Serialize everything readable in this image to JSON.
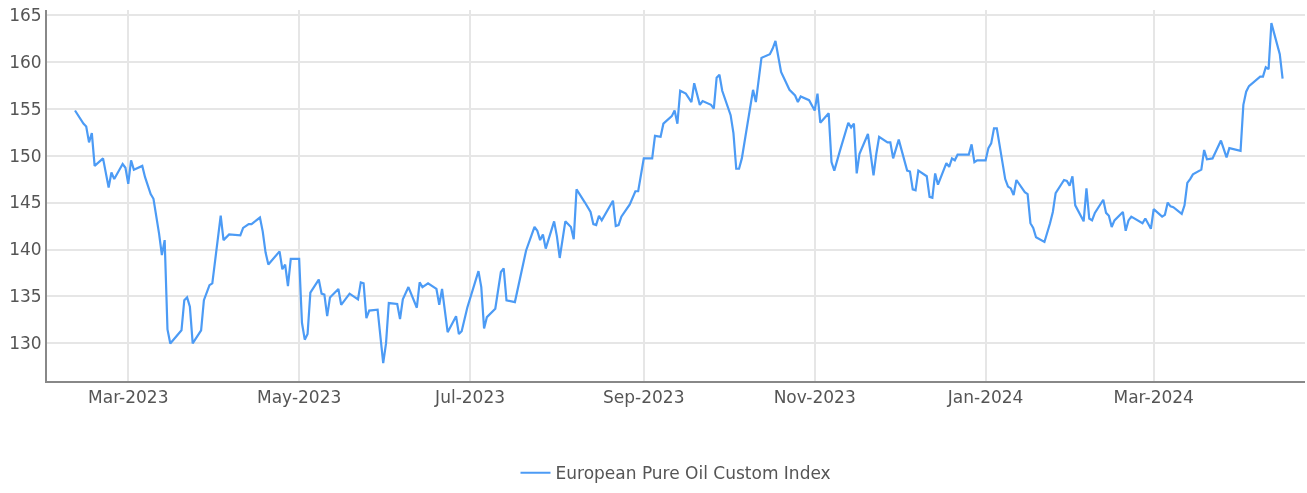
{
  "chart_data": {
    "type": "line",
    "xlim": [
      "2023-01-31",
      "2024-04-24"
    ],
    "ylim": [
      126,
      165.5
    ],
    "xticks": [
      {
        "value": "2023-03-01",
        "label": "Mar-2023"
      },
      {
        "value": "2023-05-01",
        "label": "May-2023"
      },
      {
        "value": "2023-07-01",
        "label": "Jul-2023"
      },
      {
        "value": "2023-09-01",
        "label": "Sep-2023"
      },
      {
        "value": "2023-11-01",
        "label": "Nov-2023"
      },
      {
        "value": "2024-01-01",
        "label": "Jan-2024"
      },
      {
        "value": "2024-03-01",
        "label": "Mar-2024"
      }
    ],
    "yticks": [
      130,
      135,
      140,
      145,
      150,
      155,
      160,
      165
    ],
    "grid": true,
    "legend": "bottom",
    "marker": "none",
    "line_style": "solid",
    "series": [
      {
        "name": "European Pure Oil Custom Index",
        "color": "#4c9bf5",
        "x": [
          "2023-02-10",
          "2023-02-13",
          "2023-02-14",
          "2023-02-15",
          "2023-02-16",
          "2023-02-17",
          "2023-02-20",
          "2023-02-22",
          "2023-02-23",
          "2023-02-24",
          "2023-02-27",
          "2023-02-28",
          "2023-03-01",
          "2023-03-02",
          "2023-03-03",
          "2023-03-06",
          "2023-03-07",
          "2023-03-09",
          "2023-03-10",
          "2023-03-12",
          "2023-03-13",
          "2023-03-14",
          "2023-03-15",
          "2023-03-16",
          "2023-03-20",
          "2023-03-21",
          "2023-03-22",
          "2023-03-23",
          "2023-03-24",
          "2023-03-27",
          "2023-03-28",
          "2023-03-30",
          "2023-03-31",
          "2023-04-03",
          "2023-04-04",
          "2023-04-06",
          "2023-04-10",
          "2023-04-11",
          "2023-04-13",
          "2023-04-14",
          "2023-04-17",
          "2023-04-18",
          "2023-04-19",
          "2023-04-20",
          "2023-04-24",
          "2023-04-25",
          "2023-04-26",
          "2023-04-27",
          "2023-04-28",
          "2023-05-01",
          "2023-05-02",
          "2023-05-03",
          "2023-05-04",
          "2023-05-05",
          "2023-05-08",
          "2023-05-09",
          "2023-05-10",
          "2023-05-11",
          "2023-05-12",
          "2023-05-15",
          "2023-05-16",
          "2023-05-19",
          "2023-05-22",
          "2023-05-23",
          "2023-05-24",
          "2023-05-25",
          "2023-05-26",
          "2023-05-29",
          "2023-05-31",
          "2023-06-01",
          "2023-06-02",
          "2023-06-05",
          "2023-06-06",
          "2023-06-07",
          "2023-06-09",
          "2023-06-12",
          "2023-06-13",
          "2023-06-14",
          "2023-06-16",
          "2023-06-19",
          "2023-06-20",
          "2023-06-21",
          "2023-06-23",
          "2023-06-26",
          "2023-06-27",
          "2023-06-28",
          "2023-06-30",
          "2023-07-04",
          "2023-07-05",
          "2023-07-06",
          "2023-07-07",
          "2023-07-10",
          "2023-07-12",
          "2023-07-13",
          "2023-07-14",
          "2023-07-17",
          "2023-07-21",
          "2023-07-24",
          "2023-07-25",
          "2023-07-26",
          "2023-07-27",
          "2023-07-28",
          "2023-07-31",
          "2023-08-01",
          "2023-08-02",
          "2023-08-04",
          "2023-08-06",
          "2023-08-07",
          "2023-08-08",
          "2023-08-11",
          "2023-08-13",
          "2023-08-14",
          "2023-08-15",
          "2023-08-16",
          "2023-08-17",
          "2023-08-21",
          "2023-08-22",
          "2023-08-23",
          "2023-08-24",
          "2023-08-27",
          "2023-08-29",
          "2023-08-30",
          "2023-09-01",
          "2023-09-04",
          "2023-09-05",
          "2023-09-07",
          "2023-09-08",
          "2023-09-11",
          "2023-09-12",
          "2023-09-13",
          "2023-09-14",
          "2023-09-16",
          "2023-09-18",
          "2023-09-19",
          "2023-09-21",
          "2023-09-22",
          "2023-09-25",
          "2023-09-26",
          "2023-09-27",
          "2023-09-28",
          "2023-09-29",
          "2023-10-02",
          "2023-10-03",
          "2023-10-04",
          "2023-10-05",
          "2023-10-06",
          "2023-10-10",
          "2023-10-11",
          "2023-10-13",
          "2023-10-16",
          "2023-10-17",
          "2023-10-18",
          "2023-10-20",
          "2023-10-23",
          "2023-10-25",
          "2023-10-26",
          "2023-10-27",
          "2023-10-30",
          "2023-11-01",
          "2023-11-02",
          "2023-11-03",
          "2023-11-06",
          "2023-11-07",
          "2023-11-08",
          "2023-11-10",
          "2023-11-13",
          "2023-11-14",
          "2023-11-15",
          "2023-11-16",
          "2023-11-17",
          "2023-11-20",
          "2023-11-22",
          "2023-11-23",
          "2023-11-24",
          "2023-11-27",
          "2023-11-28",
          "2023-11-29",
          "2023-12-01",
          "2023-12-04",
          "2023-12-05",
          "2023-12-06",
          "2023-12-07",
          "2023-12-08",
          "2023-12-11",
          "2023-12-12",
          "2023-12-13",
          "2023-12-14",
          "2023-12-15",
          "2023-12-18",
          "2023-12-19",
          "2023-12-20",
          "2023-12-21",
          "2023-12-22",
          "2023-12-26",
          "2023-12-27",
          "2023-12-28",
          "2023-12-29",
          "2024-01-01",
          "2024-01-02",
          "2024-01-03",
          "2024-01-04",
          "2024-01-05",
          "2024-01-08",
          "2024-01-09",
          "2024-01-10",
          "2024-01-11",
          "2024-01-12",
          "2024-01-15",
          "2024-01-16",
          "2024-01-17",
          "2024-01-18",
          "2024-01-19",
          "2024-01-22",
          "2024-01-24",
          "2024-01-25",
          "2024-01-26",
          "2024-01-29",
          "2024-01-30",
          "2024-01-31",
          "2024-02-01",
          "2024-02-02",
          "2024-02-05",
          "2024-02-06",
          "2024-02-07",
          "2024-02-08",
          "2024-02-09",
          "2024-02-12",
          "2024-02-13",
          "2024-02-14",
          "2024-02-15",
          "2024-02-16",
          "2024-02-19",
          "2024-02-20",
          "2024-02-21",
          "2024-02-22",
          "2024-02-26",
          "2024-02-27",
          "2024-02-29",
          "2024-03-01",
          "2024-03-04",
          "2024-03-05",
          "2024-03-06",
          "2024-03-07",
          "2024-03-08",
          "2024-03-11",
          "2024-03-12",
          "2024-03-13",
          "2024-03-14",
          "2024-03-15",
          "2024-03-18",
          "2024-03-19",
          "2024-03-20",
          "2024-03-22",
          "2024-03-25",
          "2024-03-27",
          "2024-03-28",
          "2024-04-01",
          "2024-04-02",
          "2024-04-03",
          "2024-04-04",
          "2024-04-08",
          "2024-04-09",
          "2024-04-10",
          "2024-04-11",
          "2024-04-12",
          "2024-04-15",
          "2024-04-16"
        ],
        "values": [
          154.8,
          153.4,
          153.1,
          151.4,
          152.4,
          148.9,
          149.7,
          146.6,
          148.2,
          147.5,
          149.1,
          148.7,
          147.0,
          149.5,
          148.5,
          148.9,
          147.7,
          145.9,
          145.4,
          141.7,
          139.4,
          141.0,
          131.5,
          130.0,
          131.4,
          134.6,
          134.9,
          133.9,
          130.0,
          131.4,
          134.6,
          136.2,
          136.4,
          143.6,
          141.0,
          141.6,
          141.5,
          142.3,
          142.7,
          142.7,
          143.4,
          141.9,
          139.7,
          138.4,
          139.8,
          137.9,
          138.4,
          136.1,
          139.0,
          139.0,
          132.2,
          130.4,
          131.0,
          135.4,
          136.8,
          135.3,
          135.2,
          132.9,
          134.9,
          135.8,
          134.1,
          135.3,
          134.7,
          136.5,
          136.4,
          132.7,
          133.5,
          133.6,
          127.9,
          130.0,
          134.3,
          134.2,
          132.6,
          134.7,
          136.0,
          133.8,
          136.5,
          136.0,
          136.4,
          135.8,
          134.1,
          135.8,
          131.2,
          132.9,
          131.0,
          131.3,
          133.8,
          137.7,
          136.0,
          131.6,
          132.8,
          133.7,
          137.6,
          138.0,
          134.6,
          134.4,
          139.9,
          142.4,
          142.0,
          141.0,
          141.6,
          140.1,
          143.0,
          141.4,
          139.1,
          143.0,
          142.4,
          141.1,
          146.4,
          145.0,
          144.0,
          142.7,
          142.6,
          143.6,
          143.1,
          145.2,
          142.5,
          142.6,
          143.5,
          144.8,
          146.2,
          146.2,
          149.7,
          149.7,
          152.1,
          152.0,
          153.4,
          154.2,
          154.8,
          153.4,
          156.9,
          156.6,
          155.7,
          157.7,
          155.4,
          155.8,
          155.4,
          155.0,
          158.3,
          158.6,
          156.9,
          154.3,
          152.4,
          148.6,
          148.6,
          149.7,
          157.0,
          155.7,
          160.4,
          160.8,
          161.4,
          162.2,
          158.9,
          157.0,
          156.4,
          155.7,
          156.3,
          155.9,
          154.8,
          156.6,
          153.5,
          154.5,
          149.3,
          148.4,
          150.5,
          153.5,
          153.0,
          153.4,
          148.1,
          150.2,
          152.3,
          147.9,
          150.2,
          152.0,
          151.4,
          151.4,
          149.7,
          151.7,
          148.4,
          148.3,
          146.4,
          146.3,
          148.4,
          147.8,
          145.6,
          145.5,
          148.1,
          146.9,
          149.2,
          148.8,
          149.7,
          149.5,
          150.1,
          150.1,
          151.2,
          149.3,
          149.5,
          149.5,
          150.8,
          151.3,
          152.9,
          152.9,
          147.5,
          146.7,
          146.5,
          145.8,
          147.4,
          146.1,
          145.9,
          142.8,
          142.3,
          141.3,
          140.8,
          142.8,
          144.0,
          146.0,
          147.4,
          147.3,
          146.8,
          147.8,
          144.7,
          143.0,
          146.5,
          143.3,
          143.1,
          143.9,
          145.3,
          143.9,
          143.6,
          142.4,
          143.1,
          144.0,
          142.0,
          143.1,
          143.5,
          142.8,
          143.3,
          142.2,
          144.3,
          143.5,
          143.7,
          145.0,
          144.6,
          144.5,
          143.8,
          144.7,
          147.1,
          147.5,
          148.0,
          148.5,
          150.6,
          149.6,
          149.7,
          151.6,
          149.8,
          150.8,
          150.5,
          155.4,
          156.8,
          157.4,
          158.4,
          158.4,
          159.4,
          159.2,
          164.1,
          160.8,
          158.2
        ]
      }
    ]
  }
}
